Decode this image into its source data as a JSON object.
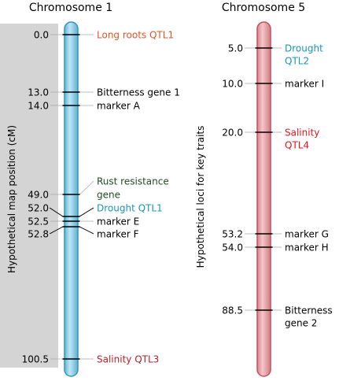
{
  "figure": {
    "left_axis_label": "Hypothetical map position (cM)",
    "right_axis_label": "Hypothetical loci for key traits"
  },
  "colors": {
    "panel": "#d4d4d4",
    "chr1_fill": "#8ccbe0",
    "chr1_stroke": "#2f97bd",
    "chr5_fill": "#e9a8ad",
    "chr5_stroke": "#c4535c",
    "tick": "#000000",
    "label_default": "#000000",
    "label_orange": "#e4542a",
    "label_darkred": "#bb1f28",
    "label_red": "#e4141c",
    "label_teal": "#1a95b8",
    "label_darkgreen": "#1f4d25",
    "leader": "#aaaaaa"
  },
  "chromosomes": [
    {
      "id": "chr1",
      "title": "Chromosome 1",
      "range_cM": [
        0.0,
        100.5
      ],
      "loci": [
        {
          "pos": "0.0",
          "label": [
            "Long roots QTL1"
          ],
          "color": "orange"
        },
        {
          "pos": "13.0",
          "label": [
            "Bitterness gene 1"
          ],
          "color": "default"
        },
        {
          "pos": "14.0",
          "label": [
            "marker A"
          ],
          "color": "default"
        },
        {
          "pos": "49.0",
          "label": [
            "Rust resistance",
            "gene"
          ],
          "color": "darkgreen"
        },
        {
          "pos": "52.0",
          "label": [
            "Drought QTL1"
          ],
          "color": "teal"
        },
        {
          "pos": "52.5",
          "label": [
            "marker E"
          ],
          "color": "default"
        },
        {
          "pos": "52.8",
          "label": [
            "marker F"
          ],
          "color": "default"
        },
        {
          "pos": "100.5",
          "label": [
            "Salinity QTL3"
          ],
          "color": "darkred"
        }
      ]
    },
    {
      "id": "chr5",
      "title": "Chromosome 5",
      "range_cM": [
        5.0,
        88.5
      ],
      "loci": [
        {
          "pos": "5.0",
          "label": [
            "Drought",
            "QTL2"
          ],
          "color": "teal"
        },
        {
          "pos": "10.0",
          "label": [
            "marker I"
          ],
          "color": "default"
        },
        {
          "pos": "20.0",
          "label": [
            "Salinity",
            "QTL4"
          ],
          "color": "red"
        },
        {
          "pos": "53.2",
          "label": [
            "marker G"
          ],
          "color": "default"
        },
        {
          "pos": "54.0",
          "label": [
            "marker H"
          ],
          "color": "default"
        },
        {
          "pos": "88.5",
          "label": [
            "Bitterness",
            "gene 2"
          ],
          "color": "default"
        }
      ]
    }
  ]
}
